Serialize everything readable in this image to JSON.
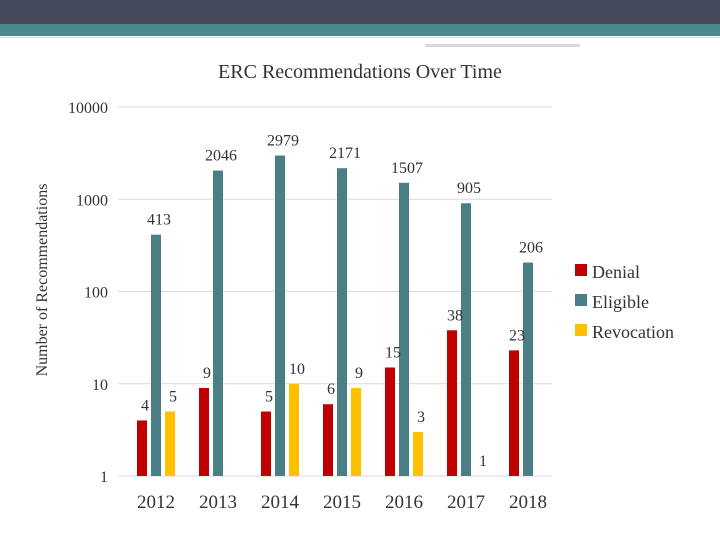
{
  "chart_data": {
    "type": "bar",
    "title": "ERC Recommendations Over Time",
    "ylabel": "Number of Recommendations",
    "xlabel": "",
    "y_scale": "log",
    "ylim": [
      1,
      10000
    ],
    "y_ticks": [
      1,
      10,
      100,
      1000,
      10000
    ],
    "y_tick_labels": [
      "1",
      "10",
      "100",
      "1000",
      "10000"
    ],
    "grid": true,
    "legend_position": "right",
    "categories": [
      "2012",
      "2013",
      "2014",
      "2015",
      "2016",
      "2017",
      "2018"
    ],
    "series": [
      {
        "name": "Denial",
        "color": "#c00000",
        "values": [
          4,
          9,
          5,
          6,
          15,
          38,
          23
        ]
      },
      {
        "name": "Eligible",
        "color": "#4a7f85",
        "values": [
          413,
          2046,
          2979,
          2171,
          1507,
          905,
          206
        ]
      },
      {
        "name": "Revocation",
        "color": "#ffc000",
        "values": [
          5,
          null,
          10,
          9,
          3,
          1,
          null
        ]
      }
    ]
  }
}
